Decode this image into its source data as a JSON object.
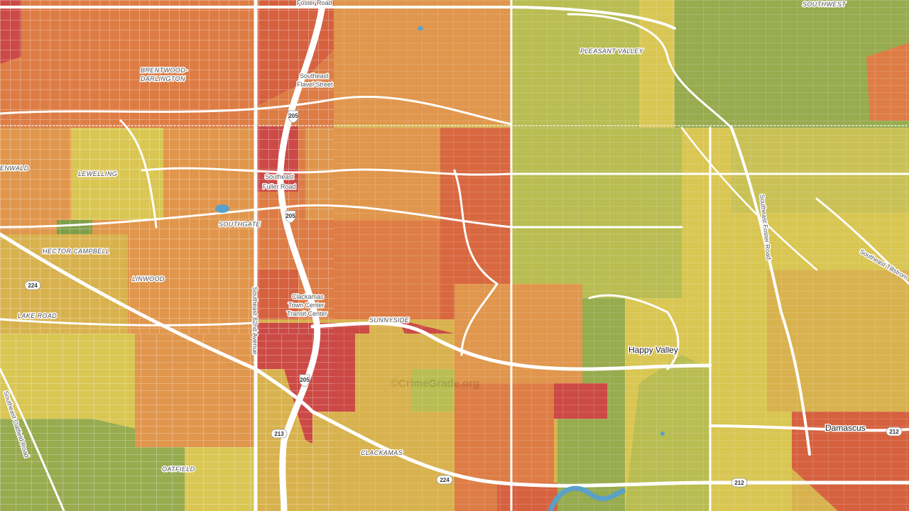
{
  "map": {
    "watermark": "©CrimeGrade.org",
    "colors": {
      "red": "#cc4a46",
      "red_orange": "#d6613f",
      "orange": "#dd7d45",
      "light_orange": "#e0964c",
      "amber": "#d8b24e",
      "yellow": "#d9c653",
      "yellow_green": "#b9bd52",
      "green": "#97ab4f",
      "dark_green": "#7f9e49",
      "road": "#ffffff",
      "water": "#5ba0c8"
    },
    "place_labels": {
      "brentwood": "BRENTWOOD-",
      "darlington": "DARLINGTON",
      "lewelling": "LEWELLING",
      "enwald": "ENWALD",
      "southgate": "SOUTHGATE",
      "hector_campbell": "HECTOR CAMPBELL",
      "linwood": "LINWOOD",
      "lake_road": "LAKE ROAD",
      "pleasant_valley": "PLEASANT VALLEY",
      "southwest": "SOUTHWEST",
      "sunnyside": "SUNNYSIDE",
      "clackamas": "CLACKAMAS",
      "oatfield": "OATFIELD",
      "happy_valley": "Happy Valley",
      "damascus": "Damascus"
    },
    "road_labels": {
      "foster_road_top": "Foster Road",
      "flavel_1": "Southeast",
      "flavel_2": "Flavel Street",
      "fuller_1": "Southeast",
      "fuller_2": "Fuller Road",
      "transit_1": "Clackamas",
      "transit_2": "Town Center",
      "transit_3": "Transit Center",
      "se_82nd": "Southeast 82nd Avenue",
      "se_foster": "Southeast Foster Road",
      "se_tillstrom": "Southeast Tillstrom",
      "se_oatfield": "Southeast Oatfield Road"
    },
    "shields": {
      "i205_top": "205",
      "i205_mid": "205",
      "i205_low": "205",
      "r224_west": "224",
      "r224_south": "224",
      "r213": "213",
      "r212_mid": "212",
      "r212_east": "212"
    }
  }
}
